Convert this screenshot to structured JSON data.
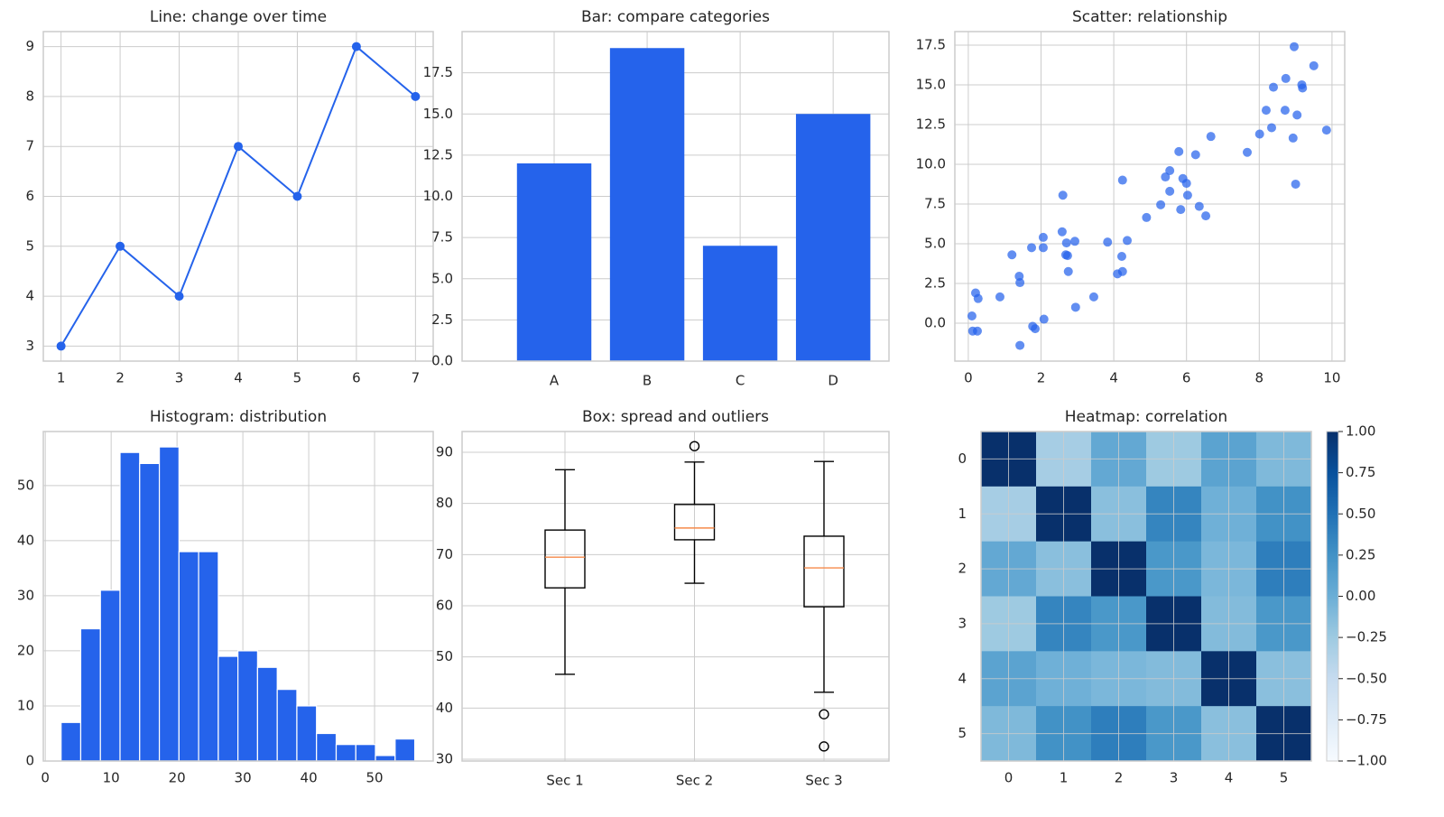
{
  "chart_data": [
    {
      "type": "line",
      "title": "Line: change over time",
      "x": [
        1,
        2,
        3,
        4,
        5,
        6,
        7
      ],
      "values": [
        3,
        5,
        4,
        7,
        6,
        9,
        8
      ],
      "color": "#2563eb",
      "xlim": [
        0.7,
        7.3
      ],
      "ylim": [
        2.7,
        9.3
      ],
      "xticks": [
        1,
        2,
        3,
        4,
        5,
        6,
        7
      ],
      "yticks": [
        3,
        4,
        5,
        6,
        7,
        8,
        9
      ],
      "grid": true
    },
    {
      "type": "bar",
      "title": "Bar: compare categories",
      "categories": [
        "A",
        "B",
        "C",
        "D"
      ],
      "values": [
        12,
        19,
        7,
        15
      ],
      "color": "#2563eb",
      "ylim": [
        0,
        20
      ],
      "yticks": [
        {
          "value": 0,
          "label": "0.0"
        },
        {
          "value": 2.5,
          "label": "2.5"
        },
        {
          "value": 5,
          "label": "5.0"
        },
        {
          "value": 7.5,
          "label": "7.5"
        },
        {
          "value": 10,
          "label": "10.0"
        },
        {
          "value": 12.5,
          "label": "12.5"
        },
        {
          "value": 15,
          "label": "15.0"
        },
        {
          "value": 17.5,
          "label": "17.5"
        }
      ],
      "grid": true
    },
    {
      "type": "scatter",
      "title": "Scatter: relationship",
      "color": "#2563eb",
      "x": [
        0.1,
        0.12,
        0.25,
        0.2,
        0.27,
        0.87,
        1.2,
        1.4,
        1.42,
        1.42,
        1.74,
        1.77,
        1.84,
        2.06,
        2.06,
        2.08,
        2.6,
        2.58,
        2.68,
        2.73,
        2.7,
        2.75,
        2.93,
        2.95,
        3.45,
        3.83,
        4.1,
        4.24,
        4.22,
        4.24,
        4.37,
        4.9,
        5.29,
        5.42,
        5.54,
        5.54,
        5.79,
        5.84,
        5.9,
        6.0,
        6.03,
        6.25,
        6.35,
        6.53,
        6.67,
        7.67,
        8.01,
        8.19,
        8.34,
        8.39,
        8.73,
        8.71,
        8.93,
        8.96,
        9.0,
        9.04,
        9.17,
        9.19,
        9.5,
        9.85
      ],
      "values": [
        0.45,
        -0.5,
        -0.5,
        1.9,
        1.55,
        1.65,
        4.3,
        2.95,
        2.55,
        -1.4,
        4.75,
        -0.2,
        -0.35,
        5.4,
        4.75,
        0.25,
        8.05,
        5.75,
        4.3,
        4.25,
        5.05,
        3.25,
        5.15,
        1.0,
        1.65,
        5.1,
        3.1,
        3.25,
        4.2,
        9.0,
        5.2,
        6.65,
        7.45,
        9.2,
        9.6,
        8.3,
        10.8,
        7.15,
        9.1,
        8.8,
        8.05,
        10.6,
        7.35,
        6.75,
        11.75,
        10.75,
        11.9,
        13.4,
        12.3,
        14.85,
        15.4,
        13.4,
        11.65,
        17.4,
        8.75,
        13.1,
        15.0,
        14.8,
        16.2,
        12.15
      ],
      "xlim": [
        -0.37,
        10.35
      ],
      "ylim": [
        -2.39,
        18.35
      ],
      "xticks": [
        0,
        2,
        4,
        6,
        8,
        10
      ],
      "yticks": [
        {
          "value": 0,
          "label": "0.0"
        },
        {
          "value": 2.5,
          "label": "2.5"
        },
        {
          "value": 5,
          "label": "5.0"
        },
        {
          "value": 7.5,
          "label": "7.5"
        },
        {
          "value": 10,
          "label": "10.0"
        },
        {
          "value": 12.5,
          "label": "12.5"
        },
        {
          "value": 15,
          "label": "15.0"
        },
        {
          "value": 17.5,
          "label": "17.5"
        }
      ],
      "grid": true
    },
    {
      "type": "histogram",
      "title": "Histogram: distribution",
      "color": "#2563eb",
      "bins": [
        2.4,
        5.38,
        8.37,
        11.35,
        14.33,
        17.32,
        20.3,
        23.28,
        26.27,
        29.25,
        32.23,
        35.22,
        38.2,
        41.18,
        44.17,
        47.15,
        50.13,
        53.12,
        56.1
      ],
      "values": [
        7,
        24,
        31,
        56,
        54,
        57,
        38,
        38,
        19,
        20,
        17,
        13,
        10,
        5,
        3,
        3,
        1,
        4
      ],
      "xlim": [
        -0.3,
        58.9
      ],
      "ylim": [
        0,
        59.8
      ],
      "xticks": [
        0,
        10,
        20,
        30,
        40,
        50
      ],
      "yticks": [
        0,
        10,
        20,
        30,
        40,
        50
      ],
      "grid": true
    },
    {
      "type": "box",
      "title": "Box: spread and outliers",
      "categories": [
        "Sec 1",
        "Sec 2",
        "Sec 3"
      ],
      "median_color": "#f58a4a",
      "boxes": [
        {
          "whislo": 46.6,
          "q1": 63.5,
          "med": 69.5,
          "q3": 74.8,
          "whishi": 86.6,
          "fliers": []
        },
        {
          "whislo": 64.4,
          "q1": 72.9,
          "med": 75.2,
          "q3": 79.8,
          "whishi": 88.1,
          "fliers": [
            91.2
          ]
        },
        {
          "whislo": 43.1,
          "q1": 59.8,
          "med": 67.4,
          "q3": 73.6,
          "whishi": 88.2,
          "fliers": [
            38.8,
            32.5
          ]
        }
      ],
      "ylim": [
        29.65,
        94.06
      ],
      "yticks": [
        30,
        40,
        50,
        60,
        70,
        80,
        90
      ],
      "grid": true
    },
    {
      "type": "heatmap",
      "title": "Heatmap: correlation",
      "colormap": "Blues",
      "xticks": [
        0,
        1,
        2,
        3,
        4,
        5
      ],
      "yticks": [
        0,
        1,
        2,
        3,
        4,
        5
      ],
      "matrix": [
        [
          1,
          -0.3,
          0.05,
          -0.25,
          0.1,
          -0.1
        ],
        [
          -0.3,
          1,
          -0.15,
          0.35,
          -0.02,
          0.25
        ],
        [
          0.05,
          -0.15,
          1,
          0.2,
          -0.08,
          0.4
        ],
        [
          -0.25,
          0.35,
          0.2,
          1,
          -0.12,
          0.2
        ],
        [
          0.1,
          -0.02,
          -0.08,
          -0.12,
          1,
          -0.15
        ],
        [
          -0.1,
          0.25,
          0.4,
          0.2,
          -0.15,
          1
        ]
      ],
      "colorbar": {
        "ylim": [
          -1,
          1
        ],
        "ticks": [
          {
            "value": 1,
            "label": "1.00"
          },
          {
            "value": 0.75,
            "label": "0.75"
          },
          {
            "value": 0.5,
            "label": "0.50"
          },
          {
            "value": 0.25,
            "label": "0.25"
          },
          {
            "value": 0,
            "label": "0.00"
          },
          {
            "value": -0.25,
            "label": "−0.25"
          },
          {
            "value": -0.5,
            "label": "−0.50"
          },
          {
            "value": -0.75,
            "label": "−0.75"
          },
          {
            "value": -1,
            "label": "−1.00"
          }
        ]
      },
      "grid": true
    }
  ]
}
